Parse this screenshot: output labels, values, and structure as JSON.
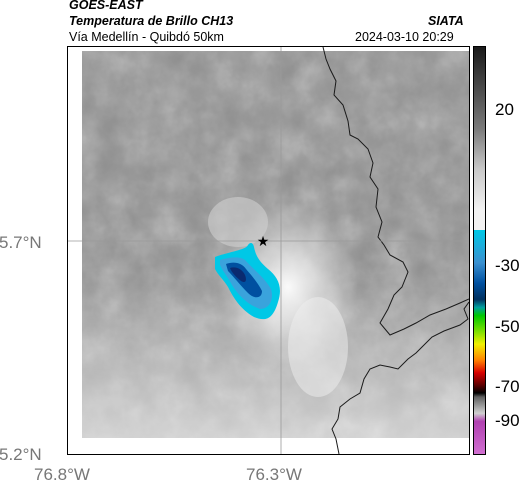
{
  "header": {
    "satellite": "GOES-EAST",
    "product": "Temperatura de Brillo CH13",
    "route": "Vía Medellín - Quibdó 50km",
    "org": "SIATA",
    "datetime": "2024-03-10 20:29"
  },
  "map": {
    "lat_ticks": [
      "5.7°N",
      "5.2°N"
    ],
    "lon_ticks": [
      "76.8°W",
      "76.3°W"
    ],
    "marker_symbol": "★",
    "gridlines": true
  },
  "colorbar": {
    "ticks": [
      "20",
      "-30",
      "-50",
      "-70",
      "-90"
    ],
    "colors": {
      "dark_gray": "#1a1a1a",
      "light_gray": "#f2f2f2",
      "cyan": "#00c8e6",
      "blue": "#0050a0",
      "green": "#00c800",
      "yellow": "#f0f000",
      "orange": "#ff8000",
      "red": "#d80000",
      "black": "#000000",
      "magenta": "#b040b0"
    }
  }
}
